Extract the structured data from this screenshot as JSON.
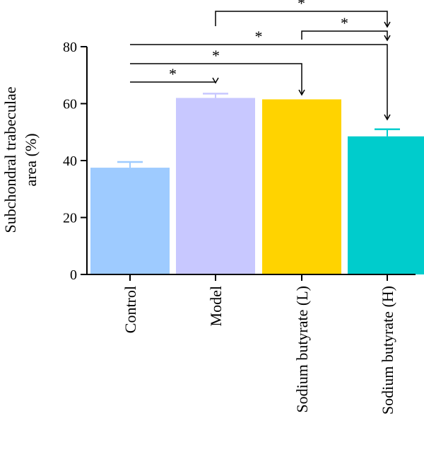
{
  "chart_data": {
    "type": "bar",
    "categories": [
      "Control",
      "Model",
      "Sodium butyrate (L)",
      "Sodium butyrate (H)"
    ],
    "values": [
      37.5,
      62,
      61.5,
      48.5
    ],
    "errors": [
      2,
      1.5,
      0,
      2.5
    ],
    "colors": [
      "#9ecbff",
      "#c8c8ff",
      "#ffd300",
      "#00cccc"
    ],
    "ylabel_lines": [
      "Subchondral trabeculae",
      "area (%)"
    ],
    "ylim": [
      0,
      80
    ],
    "yticks": [
      0,
      20,
      40,
      60,
      80
    ],
    "grid": false,
    "significance": [
      {
        "from": 0,
        "to": 1,
        "label": "*"
      },
      {
        "from": 0,
        "to": 2,
        "label": "*"
      },
      {
        "from": 0,
        "to": 3,
        "label": "*"
      },
      {
        "from": 2,
        "to": 3,
        "label": "*"
      },
      {
        "from": 1,
        "to": 3,
        "label": "*"
      }
    ]
  }
}
